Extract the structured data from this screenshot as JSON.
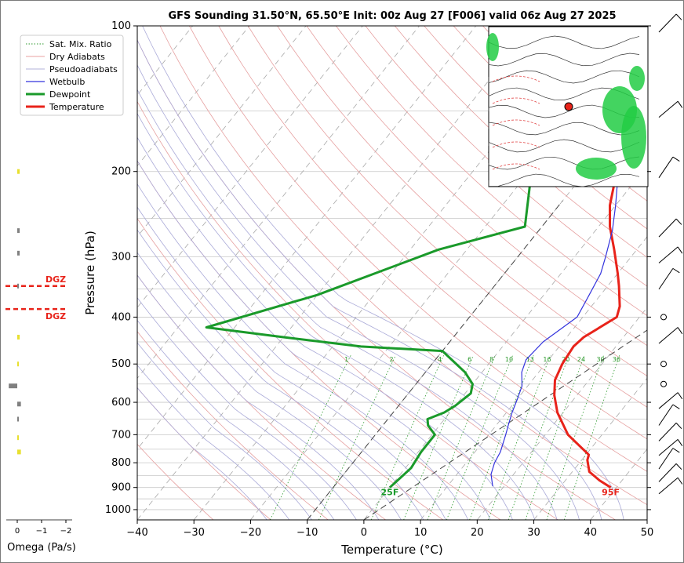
{
  "chart_data": {
    "type": "line",
    "title": "GFS Sounding 31.50°N, 65.50°E Init: 00z Aug 27 [F006] valid 06z Aug 27 2025",
    "xlabel": "Temperature (°C)",
    "ylabel": "Pressure (hPa)",
    "xlim": [
      -40,
      50
    ],
    "ylim": [
      1050,
      100
    ],
    "y_scale": "log",
    "x_ticks": [
      "−40",
      "−30",
      "−20",
      "−10",
      "0",
      "10",
      "20",
      "30",
      "40",
      "50"
    ],
    "y_ticks": [
      {
        "p": 100,
        "label": "100"
      },
      {
        "p": 200,
        "label": "200"
      },
      {
        "p": 300,
        "label": "300"
      },
      {
        "p": 400,
        "label": "400"
      },
      {
        "p": 500,
        "label": "500"
      },
      {
        "p": 600,
        "label": "600"
      },
      {
        "p": 700,
        "label": "700"
      },
      {
        "p": 800,
        "label": "800"
      },
      {
        "p": 900,
        "label": "900"
      },
      {
        "p": 1000,
        "label": "1000"
      }
    ],
    "legend": {
      "placement": "upper-left",
      "entries": [
        {
          "label": "Sat. Mix. Ratio",
          "color": "#2e9a2e",
          "style": "dotted"
        },
        {
          "label": "Dry Adiabats",
          "color": "#e08080",
          "style": "solid-thin"
        },
        {
          "label": "Pseudoadiabats",
          "color": "#9999cc",
          "style": "solid-thin"
        },
        {
          "label": "Wetbulb",
          "color": "#3333dd",
          "style": "solid"
        },
        {
          "label": "Dewpoint",
          "color": "#1a9a2a",
          "style": "bold"
        },
        {
          "label": "Temperature",
          "color": "#e8231a",
          "style": "bold"
        }
      ]
    },
    "series": [
      {
        "name": "Temperature",
        "color": "#e8231a",
        "points": [
          [
            39,
            900
          ],
          [
            36,
            870
          ],
          [
            33,
            835
          ],
          [
            31,
            790
          ],
          [
            30.5,
            770
          ],
          [
            24,
            700
          ],
          [
            19,
            630
          ],
          [
            16,
            580
          ],
          [
            14,
            540
          ],
          [
            13,
            500
          ],
          [
            12.5,
            460
          ],
          [
            13,
            440
          ],
          [
            16,
            400
          ],
          [
            15,
            380
          ],
          [
            12,
            345
          ],
          [
            10,
            325
          ],
          [
            6,
            290
          ],
          [
            2,
            260
          ],
          [
            -1,
            235
          ],
          [
            -3.5,
            210
          ],
          [
            -6,
            185
          ],
          [
            -10,
            150
          ],
          [
            -11,
            130
          ],
          [
            -11.5,
            115
          ],
          [
            -12,
            104
          ],
          [
            -12,
            100
          ]
        ]
      },
      {
        "name": "Dewpoint",
        "color": "#1a9a2a",
        "points": [
          [
            0,
            900
          ],
          [
            0.5,
            860
          ],
          [
            1,
            820
          ],
          [
            0.5,
            760
          ],
          [
            0.5,
            700
          ],
          [
            -2,
            670
          ],
          [
            -3,
            650
          ],
          [
            -1,
            630
          ],
          [
            0,
            610
          ],
          [
            1,
            575
          ],
          [
            0,
            550
          ],
          [
            -3,
            520
          ],
          [
            -10,
            470
          ],
          [
            -25,
            460
          ],
          [
            -40,
            440
          ],
          [
            -55,
            420
          ],
          [
            -40,
            360
          ],
          [
            -25,
            290
          ],
          [
            -13,
            260
          ],
          [
            -19,
            205
          ],
          [
            -20,
            180
          ],
          [
            -19,
            150
          ],
          [
            -18,
            130
          ],
          [
            -17,
            110
          ],
          [
            -17,
            100
          ]
        ]
      },
      {
        "name": "Wetbulb",
        "color": "#3333dd",
        "points": [
          [
            18,
            895
          ],
          [
            16,
            845
          ],
          [
            15,
            800
          ],
          [
            14.5,
            760
          ],
          [
            13,
            700
          ],
          [
            12,
            665
          ],
          [
            11,
            630
          ],
          [
            10,
            590
          ],
          [
            9,
            555
          ],
          [
            7,
            520
          ],
          [
            6,
            490
          ],
          [
            6.5,
            450
          ],
          [
            9,
            400
          ],
          [
            8,
            360
          ],
          [
            7,
            325
          ],
          [
            5.5,
            300
          ],
          [
            3,
            265
          ],
          [
            0,
            235
          ],
          [
            -3,
            210
          ],
          [
            -6,
            185
          ],
          [
            -10,
            150
          ]
        ]
      }
    ],
    "parcel_line": {
      "name": "dashed reference",
      "from": [
        0,
        1050
      ],
      "to": [
        50,
        150
      ]
    },
    "dgz_markers": [
      {
        "label": "DGZ",
        "p": 345
      },
      {
        "label": "DGZ",
        "p": 385
      }
    ],
    "surface_labels": [
      {
        "text": "25F",
        "x": 0,
        "p": 900,
        "color": "#1a9a2a"
      },
      {
        "text": "95F",
        "x": 39,
        "p": 900,
        "color": "#e8231a"
      }
    ],
    "mixing_ratio_labels": [
      "1",
      "2",
      "4",
      "6",
      "8",
      "10",
      "13",
      "16",
      "20",
      "24",
      "30",
      "36"
    ],
    "omega": {
      "xlabel": "Omega (Pa/s)",
      "x_ticks": [
        "0",
        "−1",
        "−2"
      ],
      "bars": [
        {
          "p": 200,
          "value": -0.1,
          "color": "#e8e030"
        },
        {
          "p": 265,
          "value": -0.1,
          "color": "#808080"
        },
        {
          "p": 295,
          "value": -0.1,
          "color": "#808080"
        },
        {
          "p": 345,
          "value": -0.05,
          "color": "#808080"
        },
        {
          "p": 440,
          "value": -0.1,
          "color": "#e8e030"
        },
        {
          "p": 500,
          "value": -0.05,
          "color": "#e8e030"
        },
        {
          "p": 555,
          "value": 0.35,
          "color": "#808080"
        },
        {
          "p": 605,
          "value": -0.15,
          "color": "#808080"
        },
        {
          "p": 650,
          "value": -0.05,
          "color": "#808080"
        },
        {
          "p": 710,
          "value": -0.05,
          "color": "#e8e030"
        },
        {
          "p": 760,
          "value": -0.15,
          "color": "#e8e030"
        }
      ]
    },
    "wind_barbs_p": [
      100,
      150,
      200,
      265,
      300,
      340,
      400,
      440,
      500,
      550,
      600,
      650,
      700,
      750,
      800,
      850,
      900
    ]
  }
}
